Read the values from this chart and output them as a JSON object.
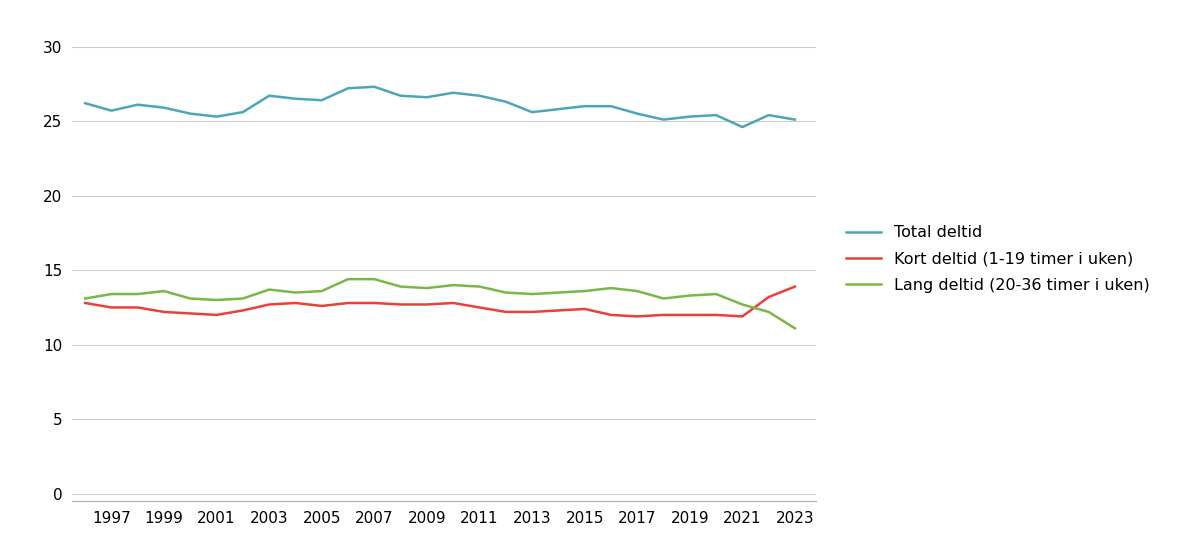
{
  "years": [
    1996,
    1997,
    1998,
    1999,
    2000,
    2001,
    2002,
    2003,
    2004,
    2005,
    2006,
    2007,
    2008,
    2009,
    2010,
    2011,
    2012,
    2013,
    2014,
    2015,
    2016,
    2017,
    2018,
    2019,
    2020,
    2021,
    2022,
    2023
  ],
  "total_deltid": [
    26.2,
    25.7,
    26.1,
    25.9,
    25.5,
    25.3,
    25.6,
    26.7,
    26.5,
    26.4,
    27.2,
    27.3,
    26.7,
    26.6,
    26.9,
    26.7,
    26.3,
    25.6,
    25.8,
    26.0,
    26.0,
    25.5,
    25.1,
    25.3,
    25.4,
    24.6,
    25.4,
    25.1
  ],
  "kort_deltid": [
    12.8,
    12.5,
    12.5,
    12.2,
    12.1,
    12.0,
    12.3,
    12.7,
    12.8,
    12.6,
    12.8,
    12.8,
    12.7,
    12.7,
    12.8,
    12.5,
    12.2,
    12.2,
    12.3,
    12.4,
    12.0,
    11.9,
    12.0,
    12.0,
    12.0,
    11.9,
    13.2,
    13.9
  ],
  "lang_deltid": [
    13.1,
    13.4,
    13.4,
    13.6,
    13.1,
    13.0,
    13.1,
    13.7,
    13.5,
    13.6,
    14.4,
    14.4,
    13.9,
    13.8,
    14.0,
    13.9,
    13.5,
    13.4,
    13.5,
    13.6,
    13.8,
    13.6,
    13.1,
    13.3,
    13.4,
    12.7,
    12.2,
    11.1
  ],
  "color_total": "#4da6b5",
  "color_kort": "#e8413a",
  "color_lang": "#7ab648",
  "legend_labels": [
    "Total deltid",
    "Kort deltid (1-19 timer i uken)",
    "Lang deltid (20-36 timer i uken)"
  ],
  "yticks": [
    0,
    5,
    10,
    15,
    20,
    25,
    30
  ],
  "xticks": [
    1997,
    1999,
    2001,
    2003,
    2005,
    2007,
    2009,
    2011,
    2013,
    2015,
    2017,
    2019,
    2021,
    2023
  ],
  "xlim": [
    1995.5,
    2023.8
  ],
  "ylim": [
    -0.5,
    32
  ],
  "background_color": "#ffffff",
  "line_width": 1.8,
  "legend_fontsize": 11.5,
  "tick_fontsize": 11
}
